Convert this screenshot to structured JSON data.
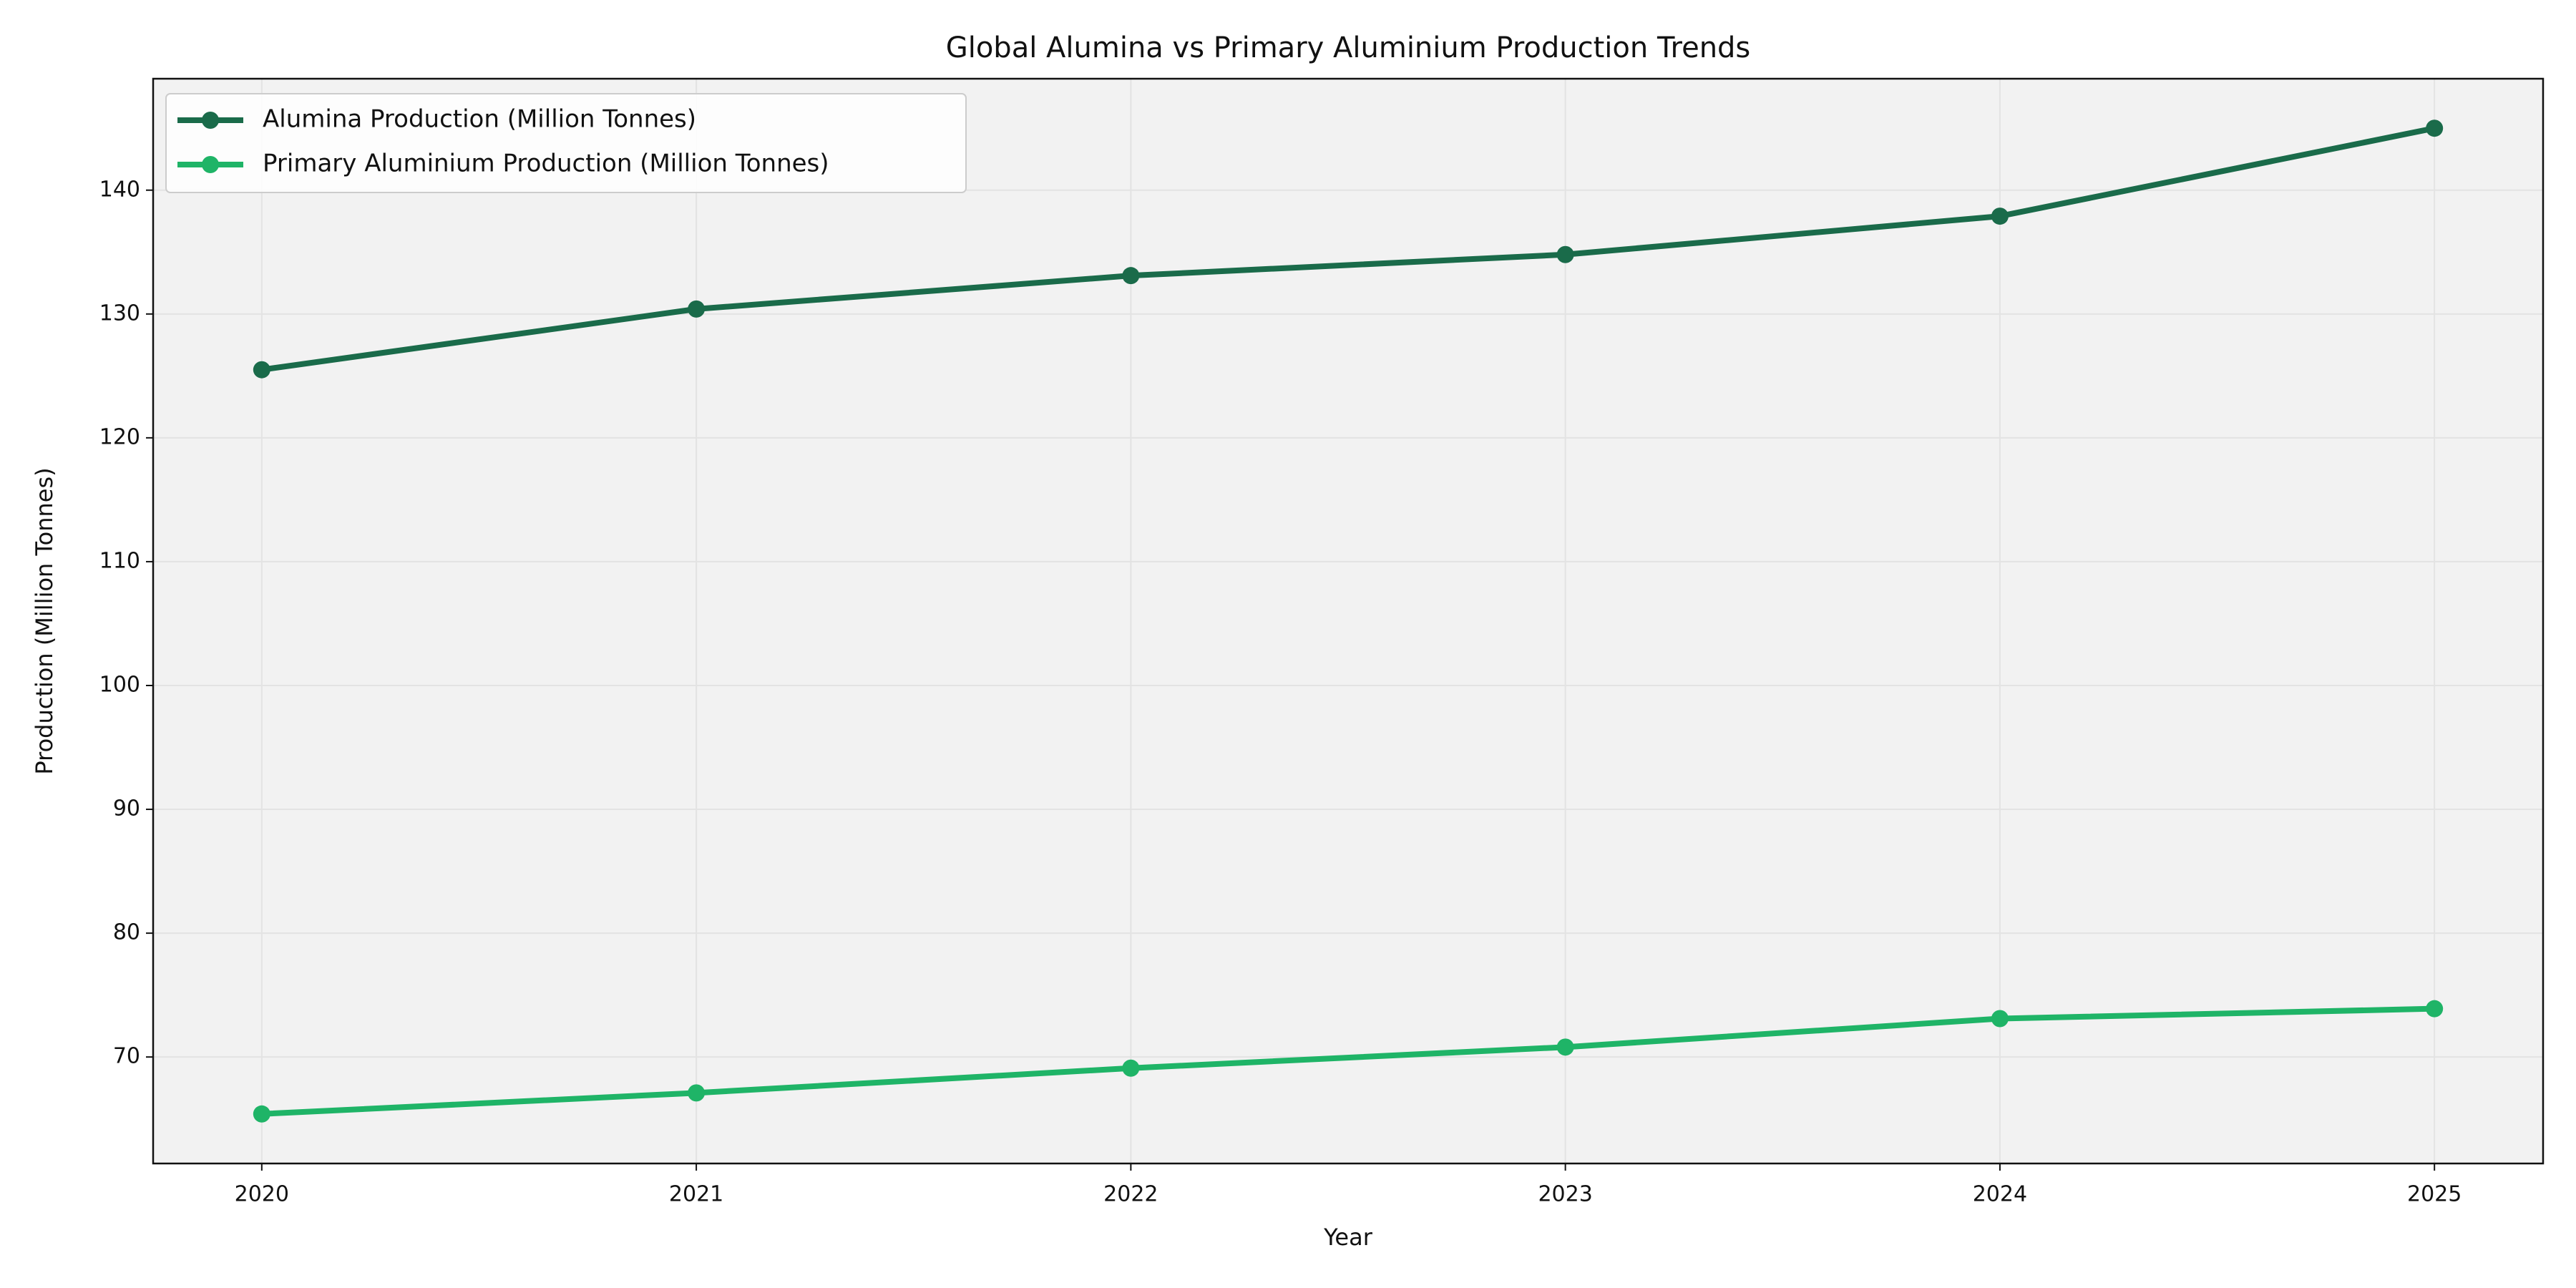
{
  "chart_data": {
    "type": "line",
    "title": "Global Alumina vs Primary Aluminium Production Trends",
    "x_label": "Year",
    "y_label": "Production (Million Tonnes)",
    "x": [
      2020,
      2021,
      2022,
      2023,
      2024,
      2025
    ],
    "series": [
      {
        "name": "Alumina Production (Million Tonnes)",
        "color": "#1a6b4a",
        "values": [
          125.5,
          130.4,
          133.1,
          134.8,
          137.9,
          145.0
        ]
      },
      {
        "name": "Primary Aluminium Production (Million Tonnes)",
        "color": "#1fb467",
        "values": [
          65.4,
          67.1,
          69.1,
          70.8,
          73.1,
          73.9
        ]
      }
    ],
    "xlim": [
      2019.75,
      2025.25
    ],
    "xticks": [
      2020,
      2021,
      2022,
      2023,
      2024,
      2025
    ],
    "ylim": [
      61.4,
      149.0
    ],
    "yticks": [
      70,
      80,
      90,
      100,
      110,
      120,
      130,
      140
    ],
    "grid": true,
    "legend": "upper left"
  }
}
